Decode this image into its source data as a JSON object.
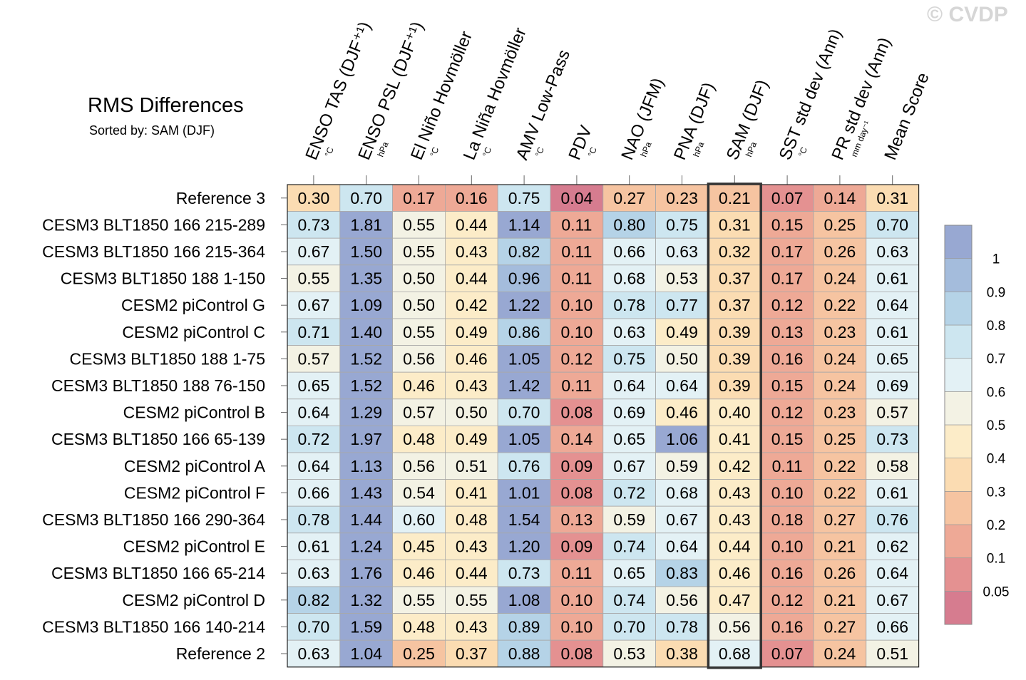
{
  "watermark": "© CVDP",
  "chart_data": {
    "type": "heatmap",
    "title": "RMS Differences",
    "subtitle": "Sorted by: SAM (DJF)",
    "highlighted_column": "SAM (DJF)",
    "columns": [
      {
        "label": "ENSO TAS (DJF⁺¹)",
        "unit": "°C"
      },
      {
        "label": "ENSO PSL (DJF⁺¹)",
        "unit": "hPa"
      },
      {
        "label": "El Niño Hovmöller",
        "unit": "°C"
      },
      {
        "label": "La Niña Hovmöller",
        "unit": "°C"
      },
      {
        "label": "AMV Low-Pass",
        "unit": "°C"
      },
      {
        "label": "PDV",
        "unit": "°C"
      },
      {
        "label": "NAO (JFM)",
        "unit": "hPa"
      },
      {
        "label": "PNA (DJF)",
        "unit": "hPa"
      },
      {
        "label": "SAM (DJF)",
        "unit": "hPa"
      },
      {
        "label": "SST std dev (Ann)",
        "unit": "°C"
      },
      {
        "label": "PR std dev (Ann)",
        "unit": "mm day⁻¹"
      },
      {
        "label": "Mean Score",
        "unit": ""
      }
    ],
    "rows": [
      "Reference 3",
      "CESM3 BLT1850 166 215-289",
      "CESM3 BLT1850 166 215-364",
      "CESM3 BLT1850 188 1-150",
      "CESM2 piControl G",
      "CESM2 piControl C",
      "CESM3 BLT1850 188 1-75",
      "CESM3 BLT1850 188 76-150",
      "CESM2 piControl B",
      "CESM3 BLT1850 166 65-139",
      "CESM2 piControl A",
      "CESM2 piControl F",
      "CESM3 BLT1850 166 290-364",
      "CESM2 piControl E",
      "CESM3 BLT1850 166 65-214",
      "CESM2 piControl D",
      "CESM3 BLT1850 166 140-214",
      "Reference 2"
    ],
    "values": [
      [
        "0.30",
        "0.70",
        "0.17",
        "0.16",
        "0.75",
        "0.04",
        "0.27",
        "0.23",
        "0.21",
        "0.07",
        "0.14",
        "0.31"
      ],
      [
        "0.73",
        "1.81",
        "0.55",
        "0.44",
        "1.14",
        "0.11",
        "0.80",
        "0.75",
        "0.31",
        "0.15",
        "0.25",
        "0.70"
      ],
      [
        "0.67",
        "1.50",
        "0.55",
        "0.43",
        "0.82",
        "0.11",
        "0.66",
        "0.63",
        "0.32",
        "0.17",
        "0.26",
        "0.63"
      ],
      [
        "0.55",
        "1.35",
        "0.50",
        "0.44",
        "0.96",
        "0.11",
        "0.68",
        "0.53",
        "0.37",
        "0.17",
        "0.24",
        "0.61"
      ],
      [
        "0.67",
        "1.09",
        "0.50",
        "0.42",
        "1.22",
        "0.10",
        "0.78",
        "0.77",
        "0.37",
        "0.12",
        "0.22",
        "0.64"
      ],
      [
        "0.71",
        "1.40",
        "0.55",
        "0.49",
        "0.86",
        "0.10",
        "0.63",
        "0.49",
        "0.39",
        "0.13",
        "0.23",
        "0.61"
      ],
      [
        "0.57",
        "1.52",
        "0.56",
        "0.46",
        "1.05",
        "0.12",
        "0.75",
        "0.50",
        "0.39",
        "0.16",
        "0.24",
        "0.65"
      ],
      [
        "0.65",
        "1.52",
        "0.46",
        "0.43",
        "1.42",
        "0.11",
        "0.64",
        "0.64",
        "0.39",
        "0.15",
        "0.24",
        "0.69"
      ],
      [
        "0.64",
        "1.29",
        "0.57",
        "0.50",
        "0.70",
        "0.08",
        "0.69",
        "0.46",
        "0.40",
        "0.12",
        "0.23",
        "0.57"
      ],
      [
        "0.72",
        "1.97",
        "0.48",
        "0.49",
        "1.05",
        "0.14",
        "0.65",
        "1.06",
        "0.41",
        "0.15",
        "0.25",
        "0.73"
      ],
      [
        "0.64",
        "1.13",
        "0.56",
        "0.51",
        "0.76",
        "0.09",
        "0.67",
        "0.59",
        "0.42",
        "0.11",
        "0.22",
        "0.58"
      ],
      [
        "0.66",
        "1.43",
        "0.54",
        "0.41",
        "1.01",
        "0.08",
        "0.72",
        "0.68",
        "0.43",
        "0.10",
        "0.22",
        "0.61"
      ],
      [
        "0.78",
        "1.44",
        "0.60",
        "0.48",
        "1.54",
        "0.13",
        "0.59",
        "0.67",
        "0.43",
        "0.18",
        "0.27",
        "0.76"
      ],
      [
        "0.61",
        "1.24",
        "0.45",
        "0.43",
        "1.20",
        "0.09",
        "0.74",
        "0.64",
        "0.44",
        "0.10",
        "0.21",
        "0.62"
      ],
      [
        "0.63",
        "1.76",
        "0.46",
        "0.44",
        "0.73",
        "0.11",
        "0.65",
        "0.83",
        "0.46",
        "0.16",
        "0.26",
        "0.64"
      ],
      [
        "0.82",
        "1.32",
        "0.55",
        "0.55",
        "1.08",
        "0.10",
        "0.74",
        "0.56",
        "0.47",
        "0.12",
        "0.21",
        "0.67"
      ],
      [
        "0.70",
        "1.59",
        "0.48",
        "0.43",
        "0.89",
        "0.10",
        "0.70",
        "0.78",
        "0.56",
        "0.16",
        "0.27",
        "0.66"
      ],
      [
        "0.63",
        "1.04",
        "0.25",
        "0.37",
        "0.88",
        "0.08",
        "0.53",
        "0.38",
        "0.68",
        "0.07",
        "0.24",
        "0.51"
      ]
    ],
    "colorbar": {
      "levels": [
        "0.05",
        "0.1",
        "0.2",
        "0.3",
        "0.4",
        "0.5",
        "0.6",
        "0.7",
        "0.8",
        "0.9",
        "1"
      ],
      "colors": [
        "#d67c8f",
        "#e49191",
        "#eea996",
        "#f6c4a1",
        "#fbdcb2",
        "#fcecc8",
        "#f3f2e4",
        "#e3f1f5",
        "#cde6f0",
        "#b5d3e7",
        "#a4bcdc",
        "#98a8d2"
      ]
    }
  }
}
